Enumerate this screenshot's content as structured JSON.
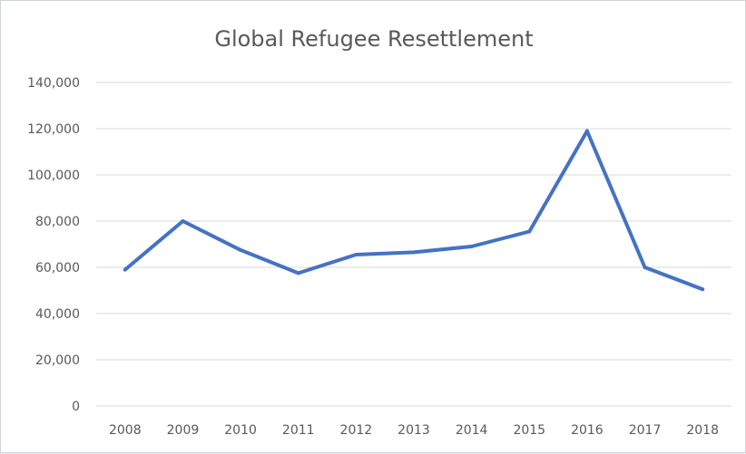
{
  "chart_data": {
    "type": "line",
    "title": "Global Refugee Resettlement",
    "xlabel": "",
    "ylabel": "",
    "categories": [
      "2008",
      "2009",
      "2010",
      "2011",
      "2012",
      "2013",
      "2014",
      "2015",
      "2016",
      "2017",
      "2018"
    ],
    "series": [
      {
        "values": [
          59000,
          80000,
          67500,
          57500,
          65500,
          66500,
          69000,
          75500,
          119000,
          60000,
          50500
        ],
        "color": "#4472c4"
      }
    ],
    "ylim": [
      0,
      140000
    ],
    "yticks": [
      0,
      20000,
      40000,
      60000,
      80000,
      100000,
      120000,
      140000
    ],
    "ytick_labels": [
      "0",
      "20,000",
      "40,000",
      "60,000",
      "80,000",
      "100,000",
      "120,000",
      "140,000"
    ],
    "grid": true,
    "legend": "none",
    "colors": {
      "gridline": "#d9d9d9",
      "text": "#595959",
      "line": "#4472c4"
    }
  }
}
